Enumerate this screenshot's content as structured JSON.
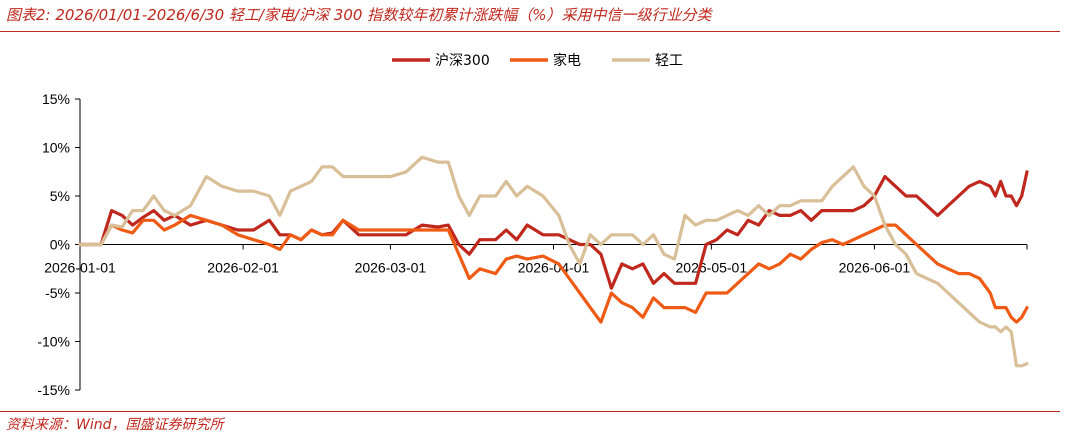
{
  "header": {
    "title": "图表2: 2026/01/01-2026/6/30 轻工/家电/沪深 300 指数较年初累计涨跌幅（%）采用中信一级行业分类"
  },
  "footer": {
    "source": "资料来源：Wind，国盛证券研究所"
  },
  "colors": {
    "accent": "#c0281e"
  },
  "chart_data": {
    "type": "line",
    "title": "",
    "xlabel": "",
    "ylabel": "",
    "xlim": [
      "2026-01-01",
      "2026-06-30"
    ],
    "ylim": [
      -15,
      15
    ],
    "yticks": [
      15,
      10,
      5,
      0,
      -5,
      -10,
      -15
    ],
    "ytick_labels": [
      "15%",
      "10%",
      "5%",
      "0%",
      "-5%",
      "-10%",
      "-15%"
    ],
    "xticks": [
      "2026-01-01",
      "2026-02-01",
      "2026-03-01",
      "2026-04-01",
      "2026-05-01",
      "2026-06-01"
    ],
    "legend_position": "top-center",
    "grid": false,
    "series": [
      {
        "name": "沪深300",
        "color": "#c0281e",
        "points": [
          [
            "2026-01-01",
            0
          ],
          [
            "2026-01-03",
            0
          ],
          [
            "2026-01-05",
            0
          ],
          [
            "2026-01-07",
            3.5
          ],
          [
            "2026-01-09",
            3
          ],
          [
            "2026-01-11",
            2
          ],
          [
            "2026-01-13",
            2.8
          ],
          [
            "2026-01-15",
            3.5
          ],
          [
            "2026-01-17",
            2.5
          ],
          [
            "2026-01-19",
            3
          ],
          [
            "2026-01-22",
            2
          ],
          [
            "2026-01-25",
            2.5
          ],
          [
            "2026-01-28",
            2
          ],
          [
            "2026-01-31",
            1.5
          ],
          [
            "2026-02-03",
            1.5
          ],
          [
            "2026-02-06",
            2.5
          ],
          [
            "2026-02-08",
            1
          ],
          [
            "2026-02-10",
            1
          ],
          [
            "2026-02-12",
            0.5
          ],
          [
            "2026-02-14",
            1.5
          ],
          [
            "2026-02-16",
            1
          ],
          [
            "2026-02-18",
            1.2
          ],
          [
            "2026-02-20",
            2.5
          ],
          [
            "2026-02-23",
            1
          ],
          [
            "2026-02-26",
            1
          ],
          [
            "2026-03-01",
            1
          ],
          [
            "2026-03-04",
            1
          ],
          [
            "2026-03-07",
            2
          ],
          [
            "2026-03-10",
            1.8
          ],
          [
            "2026-03-12",
            2
          ],
          [
            "2026-03-14",
            0
          ],
          [
            "2026-03-16",
            -1
          ],
          [
            "2026-03-18",
            0.5
          ],
          [
            "2026-03-21",
            0.5
          ],
          [
            "2026-03-23",
            1.5
          ],
          [
            "2026-03-25",
            0.5
          ],
          [
            "2026-03-27",
            2
          ],
          [
            "2026-03-30",
            1
          ],
          [
            "2026-04-02",
            1
          ],
          [
            "2026-04-04",
            0.5
          ],
          [
            "2026-04-06",
            0
          ],
          [
            "2026-04-08",
            0
          ],
          [
            "2026-04-10",
            -1
          ],
          [
            "2026-04-12",
            -4.5
          ],
          [
            "2026-04-14",
            -2
          ],
          [
            "2026-04-16",
            -2.5
          ],
          [
            "2026-04-18",
            -2
          ],
          [
            "2026-04-20",
            -4
          ],
          [
            "2026-04-22",
            -3
          ],
          [
            "2026-04-24",
            -4
          ],
          [
            "2026-04-26",
            -4
          ],
          [
            "2026-04-28",
            -4
          ],
          [
            "2026-04-30",
            0
          ],
          [
            "2026-05-02",
            0.5
          ],
          [
            "2026-05-04",
            1.5
          ],
          [
            "2026-05-06",
            1
          ],
          [
            "2026-05-08",
            2.5
          ],
          [
            "2026-05-10",
            2
          ],
          [
            "2026-05-12",
            3.5
          ],
          [
            "2026-05-14",
            3
          ],
          [
            "2026-05-16",
            3
          ],
          [
            "2026-05-18",
            3.5
          ],
          [
            "2026-05-20",
            2.5
          ],
          [
            "2026-05-22",
            3.5
          ],
          [
            "2026-05-24",
            3.5
          ],
          [
            "2026-05-26",
            3.5
          ],
          [
            "2026-05-28",
            3.5
          ],
          [
            "2026-05-30",
            4
          ],
          [
            "2026-06-01",
            5
          ],
          [
            "2026-06-03",
            7
          ],
          [
            "2026-06-05",
            6
          ],
          [
            "2026-06-07",
            5
          ],
          [
            "2026-06-09",
            5
          ],
          [
            "2026-06-11",
            4
          ],
          [
            "2026-06-13",
            3
          ],
          [
            "2026-06-15",
            4
          ],
          [
            "2026-06-17",
            5
          ],
          [
            "2026-06-19",
            6
          ],
          [
            "2026-06-21",
            6.5
          ],
          [
            "2026-06-23",
            6
          ],
          [
            "2026-06-24",
            5
          ],
          [
            "2026-06-25",
            6.5
          ],
          [
            "2026-06-26",
            5
          ],
          [
            "2026-06-27",
            5
          ],
          [
            "2026-06-28",
            4
          ],
          [
            "2026-06-29",
            5
          ],
          [
            "2026-06-30",
            7.5
          ]
        ]
      },
      {
        "name": "家电",
        "color": "#ef5b14",
        "points": [
          [
            "2026-01-01",
            0
          ],
          [
            "2026-01-03",
            0
          ],
          [
            "2026-01-05",
            0
          ],
          [
            "2026-01-07",
            2
          ],
          [
            "2026-01-09",
            1.5
          ],
          [
            "2026-01-11",
            1.2
          ],
          [
            "2026-01-13",
            2.5
          ],
          [
            "2026-01-15",
            2.5
          ],
          [
            "2026-01-17",
            1.5
          ],
          [
            "2026-01-19",
            2
          ],
          [
            "2026-01-22",
            3
          ],
          [
            "2026-01-25",
            2.5
          ],
          [
            "2026-01-28",
            2
          ],
          [
            "2026-01-31",
            1
          ],
          [
            "2026-02-03",
            0.5
          ],
          [
            "2026-02-06",
            0
          ],
          [
            "2026-02-08",
            -0.5
          ],
          [
            "2026-02-10",
            1
          ],
          [
            "2026-02-12",
            0.5
          ],
          [
            "2026-02-14",
            1.5
          ],
          [
            "2026-02-16",
            1
          ],
          [
            "2026-02-18",
            1
          ],
          [
            "2026-02-20",
            2.5
          ],
          [
            "2026-02-23",
            1.5
          ],
          [
            "2026-02-26",
            1.5
          ],
          [
            "2026-03-01",
            1.5
          ],
          [
            "2026-03-04",
            1.5
          ],
          [
            "2026-03-07",
            1.5
          ],
          [
            "2026-03-10",
            1.5
          ],
          [
            "2026-03-12",
            1.5
          ],
          [
            "2026-03-14",
            -1
          ],
          [
            "2026-03-16",
            -3.5
          ],
          [
            "2026-03-18",
            -2.5
          ],
          [
            "2026-03-21",
            -3
          ],
          [
            "2026-03-23",
            -1.5
          ],
          [
            "2026-03-25",
            -1.2
          ],
          [
            "2026-03-27",
            -1.5
          ],
          [
            "2026-03-30",
            -1.2
          ],
          [
            "2026-04-02",
            -2
          ],
          [
            "2026-04-04",
            -3.5
          ],
          [
            "2026-04-06",
            -5
          ],
          [
            "2026-04-08",
            -6.5
          ],
          [
            "2026-04-10",
            -8
          ],
          [
            "2026-04-12",
            -5
          ],
          [
            "2026-04-14",
            -6
          ],
          [
            "2026-04-16",
            -6.5
          ],
          [
            "2026-04-18",
            -7.5
          ],
          [
            "2026-04-20",
            -5.5
          ],
          [
            "2026-04-22",
            -6.5
          ],
          [
            "2026-04-24",
            -6.5
          ],
          [
            "2026-04-26",
            -6.5
          ],
          [
            "2026-04-28",
            -7
          ],
          [
            "2026-04-30",
            -5
          ],
          [
            "2026-05-02",
            -5
          ],
          [
            "2026-05-04",
            -5
          ],
          [
            "2026-05-06",
            -4
          ],
          [
            "2026-05-08",
            -3
          ],
          [
            "2026-05-10",
            -2
          ],
          [
            "2026-05-12",
            -2.5
          ],
          [
            "2026-05-14",
            -2
          ],
          [
            "2026-05-16",
            -1
          ],
          [
            "2026-05-18",
            -1.5
          ],
          [
            "2026-05-20",
            -0.5
          ],
          [
            "2026-05-22",
            0.2
          ],
          [
            "2026-05-24",
            0.5
          ],
          [
            "2026-05-26",
            0
          ],
          [
            "2026-05-28",
            0.5
          ],
          [
            "2026-05-30",
            1
          ],
          [
            "2026-06-01",
            1.5
          ],
          [
            "2026-06-03",
            2
          ],
          [
            "2026-06-05",
            2
          ],
          [
            "2026-06-07",
            1
          ],
          [
            "2026-06-09",
            0
          ],
          [
            "2026-06-11",
            -1
          ],
          [
            "2026-06-13",
            -2
          ],
          [
            "2026-06-15",
            -2.5
          ],
          [
            "2026-06-17",
            -3
          ],
          [
            "2026-06-19",
            -3
          ],
          [
            "2026-06-21",
            -3.5
          ],
          [
            "2026-06-23",
            -5
          ],
          [
            "2026-06-24",
            -6.5
          ],
          [
            "2026-06-25",
            -6.5
          ],
          [
            "2026-06-26",
            -6.5
          ],
          [
            "2026-06-27",
            -7.5
          ],
          [
            "2026-06-28",
            -8
          ],
          [
            "2026-06-29",
            -7.5
          ],
          [
            "2026-06-30",
            -6.5
          ]
        ]
      },
      {
        "name": "轻工",
        "color": "#d8bf98",
        "points": [
          [
            "2026-01-01",
            0
          ],
          [
            "2026-01-03",
            0
          ],
          [
            "2026-01-05",
            0
          ],
          [
            "2026-01-07",
            2
          ],
          [
            "2026-01-09",
            1.8
          ],
          [
            "2026-01-11",
            3.5
          ],
          [
            "2026-01-13",
            3.5
          ],
          [
            "2026-01-15",
            5
          ],
          [
            "2026-01-17",
            3.5
          ],
          [
            "2026-01-19",
            3
          ],
          [
            "2026-01-22",
            4
          ],
          [
            "2026-01-25",
            7
          ],
          [
            "2026-01-28",
            6
          ],
          [
            "2026-01-31",
            5.5
          ],
          [
            "2026-02-03",
            5.5
          ],
          [
            "2026-02-06",
            5
          ],
          [
            "2026-02-08",
            3
          ],
          [
            "2026-02-10",
            5.5
          ],
          [
            "2026-02-12",
            6
          ],
          [
            "2026-02-14",
            6.5
          ],
          [
            "2026-02-16",
            8
          ],
          [
            "2026-02-18",
            8
          ],
          [
            "2026-02-20",
            7
          ],
          [
            "2026-02-23",
            7
          ],
          [
            "2026-02-26",
            7
          ],
          [
            "2026-03-01",
            7
          ],
          [
            "2026-03-04",
            7.5
          ],
          [
            "2026-03-07",
            9
          ],
          [
            "2026-03-10",
            8.5
          ],
          [
            "2026-03-12",
            8.5
          ],
          [
            "2026-03-14",
            5
          ],
          [
            "2026-03-16",
            3
          ],
          [
            "2026-03-18",
            5
          ],
          [
            "2026-03-21",
            5
          ],
          [
            "2026-03-23",
            6.5
          ],
          [
            "2026-03-25",
            5
          ],
          [
            "2026-03-27",
            6
          ],
          [
            "2026-03-30",
            5
          ],
          [
            "2026-04-02",
            3
          ],
          [
            "2026-04-04",
            0
          ],
          [
            "2026-04-06",
            -2
          ],
          [
            "2026-04-08",
            1
          ],
          [
            "2026-04-10",
            0
          ],
          [
            "2026-04-12",
            1
          ],
          [
            "2026-04-14",
            1
          ],
          [
            "2026-04-16",
            1
          ],
          [
            "2026-04-18",
            0
          ],
          [
            "2026-04-20",
            1
          ],
          [
            "2026-04-22",
            -1
          ],
          [
            "2026-04-24",
            -1.5
          ],
          [
            "2026-04-26",
            3
          ],
          [
            "2026-04-28",
            2
          ],
          [
            "2026-04-30",
            2.5
          ],
          [
            "2026-05-02",
            2.5
          ],
          [
            "2026-05-04",
            3
          ],
          [
            "2026-05-06",
            3.5
          ],
          [
            "2026-05-08",
            3
          ],
          [
            "2026-05-10",
            4
          ],
          [
            "2026-05-12",
            3
          ],
          [
            "2026-05-14",
            4
          ],
          [
            "2026-05-16",
            4
          ],
          [
            "2026-05-18",
            4.5
          ],
          [
            "2026-05-20",
            4.5
          ],
          [
            "2026-05-22",
            4.5
          ],
          [
            "2026-05-24",
            6
          ],
          [
            "2026-05-26",
            7
          ],
          [
            "2026-05-28",
            8
          ],
          [
            "2026-05-30",
            6
          ],
          [
            "2026-06-01",
            5
          ],
          [
            "2026-06-03",
            2
          ],
          [
            "2026-06-05",
            0
          ],
          [
            "2026-06-07",
            -1
          ],
          [
            "2026-06-09",
            -3
          ],
          [
            "2026-06-11",
            -3.5
          ],
          [
            "2026-06-13",
            -4
          ],
          [
            "2026-06-15",
            -5
          ],
          [
            "2026-06-17",
            -6
          ],
          [
            "2026-06-19",
            -7
          ],
          [
            "2026-06-21",
            -8
          ],
          [
            "2026-06-23",
            -8.5
          ],
          [
            "2026-06-24",
            -8.5
          ],
          [
            "2026-06-25",
            -9
          ],
          [
            "2026-06-26",
            -8.5
          ],
          [
            "2026-06-27",
            -9
          ],
          [
            "2026-06-28",
            -12.5
          ],
          [
            "2026-06-29",
            -12.5
          ],
          [
            "2026-06-30",
            -12.3
          ]
        ]
      }
    ]
  }
}
